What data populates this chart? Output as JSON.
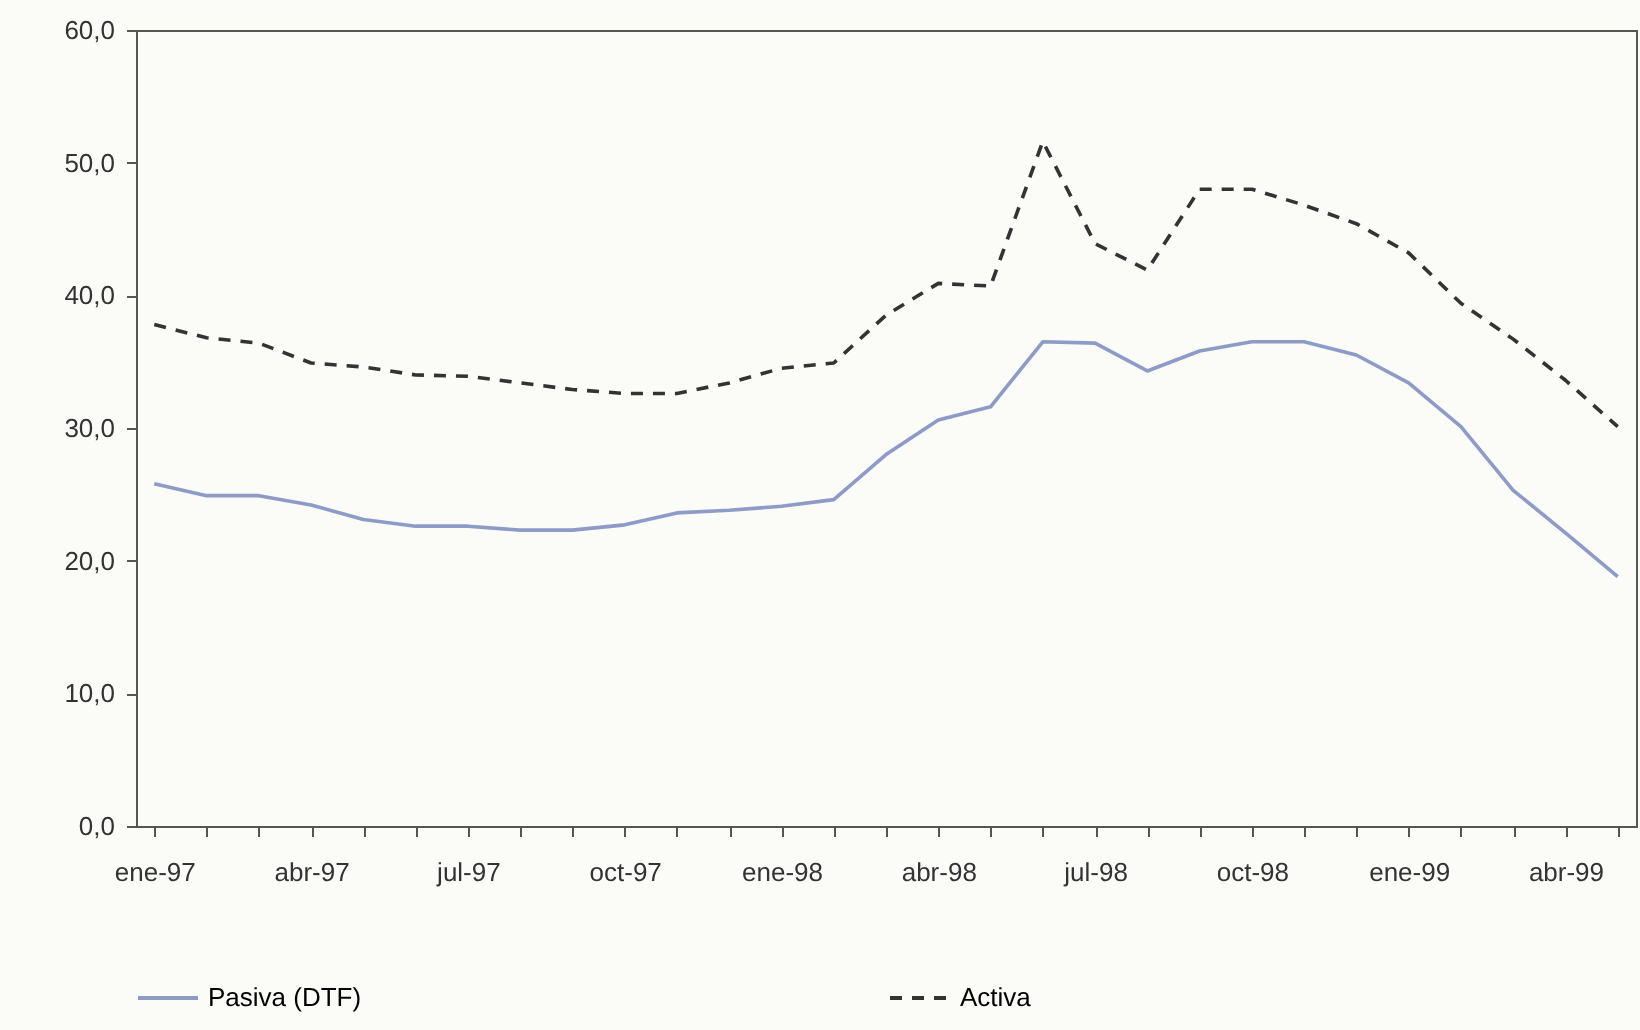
{
  "chart_data": {
    "type": "line",
    "categories": [
      "ene-97",
      null,
      null,
      "abr-97",
      null,
      null,
      "jul-97",
      null,
      null,
      "oct-97",
      null,
      null,
      "ene-98",
      null,
      null,
      "abr-98",
      null,
      null,
      "jul-98",
      null,
      null,
      "oct-98",
      null,
      null,
      "ene-99",
      null,
      null,
      "abr-99",
      null
    ],
    "series": [
      {
        "name": "Pasiva (DTF)",
        "color": "#8d9bc6",
        "line_style": "solid",
        "values": [
          25.8,
          24.9,
          24.9,
          24.2,
          23.1,
          22.6,
          22.6,
          22.3,
          22.3,
          22.7,
          23.6,
          23.8,
          24.1,
          24.6,
          28.0,
          30.6,
          31.6,
          36.5,
          36.4,
          34.3,
          35.8,
          36.5,
          36.5,
          35.5,
          33.4,
          30.1,
          25.3,
          22.1,
          18.8
        ]
      },
      {
        "name": "Activa",
        "color": "#333333",
        "line_style": "dashed",
        "values": [
          37.8,
          36.8,
          36.4,
          34.9,
          34.6,
          34.0,
          33.9,
          33.4,
          32.9,
          32.6,
          32.6,
          33.4,
          34.5,
          34.9,
          38.5,
          40.9,
          40.7,
          51.6,
          43.9,
          41.9,
          48.0,
          48.0,
          46.8,
          45.4,
          43.2,
          39.4,
          36.7,
          33.6,
          30.1
        ]
      }
    ],
    "ylim": [
      0,
      60
    ],
    "yticks": [
      {
        "value": 0,
        "label": "0,0"
      },
      {
        "value": 10,
        "label": "10,0"
      },
      {
        "value": 20,
        "label": "20,0"
      },
      {
        "value": 30,
        "label": "30,0"
      },
      {
        "value": 40,
        "label": "40,0"
      },
      {
        "value": 50,
        "label": "50,0"
      },
      {
        "value": 60,
        "label": "60,0"
      }
    ],
    "grid": false,
    "legend": "bottom"
  }
}
